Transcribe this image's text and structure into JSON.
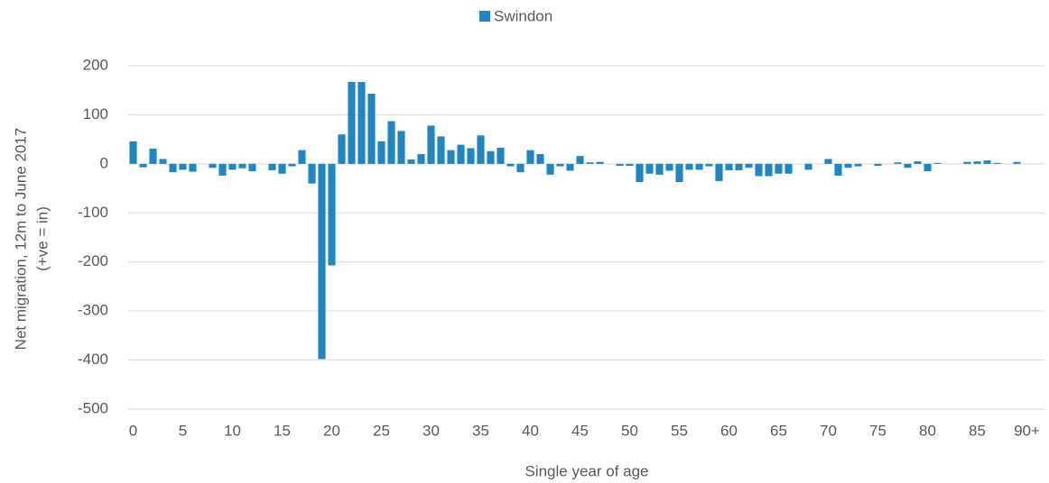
{
  "chart_data": {
    "type": "bar",
    "legend": "top",
    "y_label": [
      "Net migration, 12m to June 2017",
      "(+ve = in)"
    ],
    "x_label": "Single year of age",
    "categories": [
      "0",
      null,
      null,
      null,
      null,
      "5",
      null,
      null,
      null,
      null,
      "10",
      null,
      null,
      null,
      null,
      "15",
      null,
      null,
      null,
      null,
      "20",
      null,
      null,
      null,
      null,
      "25",
      null,
      null,
      null,
      null,
      "30",
      null,
      null,
      null,
      null,
      "35",
      null,
      null,
      null,
      null,
      "40",
      null,
      null,
      null,
      null,
      "45",
      null,
      null,
      null,
      null,
      "50",
      null,
      null,
      null,
      null,
      "55",
      null,
      null,
      null,
      null,
      "60",
      null,
      null,
      null,
      null,
      "65",
      null,
      null,
      null,
      null,
      "70",
      null,
      null,
      null,
      null,
      "75",
      null,
      null,
      null,
      null,
      "80",
      null,
      null,
      null,
      null,
      "85",
      null,
      null,
      null,
      null,
      "90+"
    ],
    "series": [
      {
        "name": "Swindon",
        "color": "#1f86c1",
        "values": [
          46,
          -7,
          31,
          10,
          -17,
          -12,
          -16,
          0,
          -8,
          -24,
          -12,
          -9,
          -15,
          0,
          -13,
          -20,
          -5,
          28,
          -40,
          -398,
          -207,
          60,
          167,
          167,
          143,
          46,
          87,
          67,
          9,
          20,
          78,
          56,
          28,
          39,
          32,
          58,
          26,
          33,
          -5,
          -17,
          28,
          20,
          -22,
          -5,
          -14,
          16,
          3,
          4,
          0,
          -4,
          -4,
          -37,
          -20,
          -22,
          -14,
          -37,
          -12,
          -12,
          -5,
          -35,
          -13,
          -13,
          -8,
          -25,
          -25,
          -20,
          -20,
          0,
          -12,
          0,
          10,
          -24,
          -8,
          -5,
          0,
          -4,
          0,
          3,
          -8,
          5,
          -15,
          2,
          0,
          0,
          4,
          5,
          7,
          2,
          0,
          4,
          0
        ]
      }
    ],
    "ylim": [
      -500,
      200
    ],
    "yticks": [
      -500,
      -400,
      -300,
      -200,
      -100,
      0,
      100,
      200
    ],
    "grid": true
  }
}
